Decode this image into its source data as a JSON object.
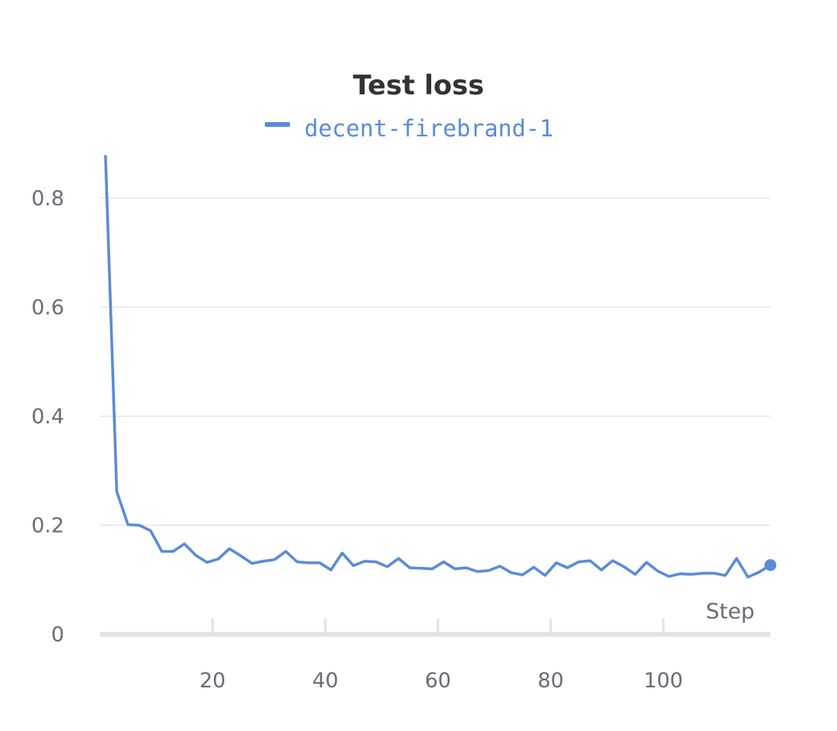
{
  "chart_data": {
    "type": "line",
    "title": "Test loss",
    "xlabel": "Step",
    "ylabel": "",
    "xlim": [
      0,
      119
    ],
    "ylim": [
      0,
      0.88
    ],
    "x_ticks": [
      20,
      40,
      60,
      80,
      100
    ],
    "y_ticks": [
      0,
      0.2,
      0.4,
      0.6,
      0.8
    ],
    "grid": true,
    "legend": "top-center",
    "series": [
      {
        "name": "decent-firebrand-1",
        "color": "#5b8bd9",
        "x": [
          1,
          3,
          5,
          7,
          9,
          11,
          13,
          15,
          17,
          19,
          21,
          23,
          25,
          27,
          29,
          31,
          33,
          35,
          37,
          39,
          41,
          43,
          45,
          47,
          49,
          51,
          53,
          55,
          57,
          59,
          61,
          63,
          65,
          67,
          69,
          71,
          73,
          75,
          77,
          79,
          81,
          83,
          85,
          87,
          89,
          91,
          93,
          95,
          97,
          99,
          101,
          103,
          105,
          107,
          109,
          111,
          113,
          115,
          117,
          119
        ],
        "y": [
          0.877,
          0.262,
          0.201,
          0.2,
          0.19,
          0.152,
          0.152,
          0.166,
          0.145,
          0.132,
          0.138,
          0.157,
          0.144,
          0.13,
          0.134,
          0.137,
          0.152,
          0.133,
          0.131,
          0.131,
          0.118,
          0.149,
          0.126,
          0.134,
          0.133,
          0.124,
          0.139,
          0.122,
          0.121,
          0.12,
          0.133,
          0.12,
          0.122,
          0.115,
          0.117,
          0.125,
          0.113,
          0.109,
          0.123,
          0.108,
          0.131,
          0.122,
          0.133,
          0.135,
          0.118,
          0.135,
          0.124,
          0.11,
          0.132,
          0.116,
          0.106,
          0.111,
          0.11,
          0.112,
          0.112,
          0.108,
          0.139,
          0.105,
          0.114,
          0.127
        ]
      }
    ]
  }
}
